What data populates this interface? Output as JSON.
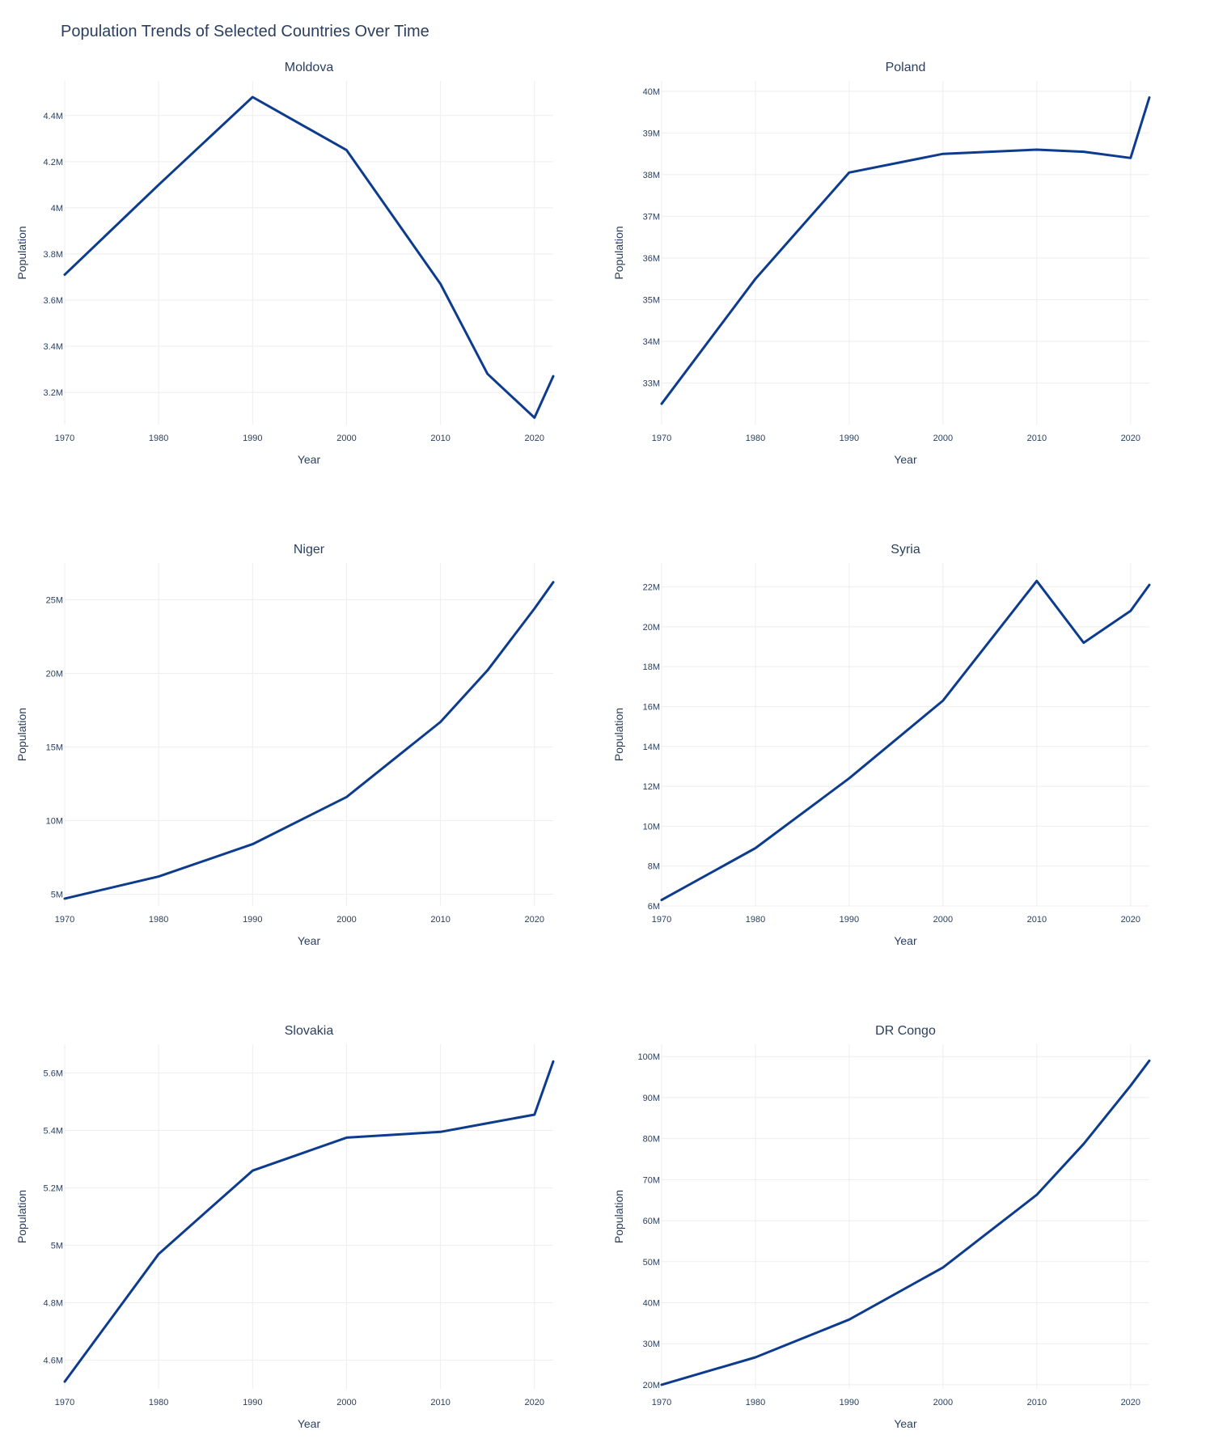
{
  "title": "Population Trends of Selected Countries Over Time",
  "colors": {
    "line": "#0d3c8e",
    "grid": "#eeeeee",
    "text": "#2a3f5f"
  },
  "chart_data": [
    {
      "type": "line",
      "title": "Moldova",
      "xlabel": "Year",
      "ylabel": "Population",
      "x": [
        1970,
        1980,
        1990,
        2000,
        2010,
        2015,
        2020,
        2022
      ],
      "y": [
        3710000,
        4100000,
        4480000,
        4250000,
        3670000,
        3280000,
        3090000,
        3270000
      ],
      "xlim": [
        1970,
        2022
      ],
      "ylim": [
        3060000,
        4550000
      ],
      "xticks": [
        1970,
        1980,
        1990,
        2000,
        2010,
        2020
      ],
      "yticks": [
        3200000,
        3400000,
        3600000,
        3800000,
        4000000,
        4200000,
        4400000
      ],
      "ytick_labels": [
        "3.2M",
        "3.4M",
        "3.6M",
        "3.8M",
        "4M",
        "4.2M",
        "4.4M"
      ],
      "grid": true
    },
    {
      "type": "line",
      "title": "Poland",
      "xlabel": "Year",
      "ylabel": "Population",
      "x": [
        1970,
        1980,
        1990,
        2000,
        2010,
        2015,
        2020,
        2022
      ],
      "y": [
        32500000,
        35500000,
        38050000,
        38500000,
        38600000,
        38550000,
        38400000,
        39850000
      ],
      "xlim": [
        1970,
        2022
      ],
      "ylim": [
        32000000,
        40250000
      ],
      "xticks": [
        1970,
        1980,
        1990,
        2000,
        2010,
        2020
      ],
      "yticks": [
        33000000,
        34000000,
        35000000,
        36000000,
        37000000,
        38000000,
        39000000,
        40000000
      ],
      "ytick_labels": [
        "33M",
        "34M",
        "35M",
        "36M",
        "37M",
        "38M",
        "39M",
        "40M"
      ],
      "grid": true
    },
    {
      "type": "line",
      "title": "Niger",
      "xlabel": "Year",
      "ylabel": "Population",
      "x": [
        1970,
        1980,
        1990,
        2000,
        2010,
        2015,
        2020,
        2022
      ],
      "y": [
        4700000,
        6200000,
        8400000,
        11600000,
        16700000,
        20200000,
        24400000,
        26200000
      ],
      "xlim": [
        1970,
        2022
      ],
      "ylim": [
        4200000,
        27500000
      ],
      "xticks": [
        1970,
        1980,
        1990,
        2000,
        2010,
        2020
      ],
      "yticks": [
        5000000,
        10000000,
        15000000,
        20000000,
        25000000
      ],
      "ytick_labels": [
        "5M",
        "10M",
        "15M",
        "20M",
        "25M"
      ],
      "grid": true
    },
    {
      "type": "line",
      "title": "Syria",
      "xlabel": "Year",
      "ylabel": "Population",
      "x": [
        1970,
        1980,
        1990,
        2000,
        2010,
        2015,
        2020,
        2022
      ],
      "y": [
        6300000,
        8900000,
        12400000,
        16300000,
        22300000,
        19200000,
        20800000,
        22100000
      ],
      "xlim": [
        1970,
        2022
      ],
      "ylim": [
        6000000,
        23200000
      ],
      "xticks": [
        1970,
        1980,
        1990,
        2000,
        2010,
        2020
      ],
      "yticks": [
        6000000,
        8000000,
        10000000,
        12000000,
        14000000,
        16000000,
        18000000,
        20000000,
        22000000
      ],
      "ytick_labels": [
        "6M",
        "8M",
        "10M",
        "12M",
        "14M",
        "16M",
        "18M",
        "20M",
        "22M"
      ],
      "grid": true
    },
    {
      "type": "line",
      "title": "Slovakia",
      "xlabel": "Year",
      "ylabel": "Population",
      "x": [
        1970,
        1980,
        1990,
        2000,
        2010,
        2015,
        2020,
        2022
      ],
      "y": [
        4525000,
        4970000,
        5260000,
        5375000,
        5395000,
        5425000,
        5455000,
        5640000
      ],
      "xlim": [
        1970,
        2022
      ],
      "ylim": [
        4500000,
        5700000
      ],
      "xticks": [
        1970,
        1980,
        1990,
        2000,
        2010,
        2020
      ],
      "yticks": [
        4600000,
        4800000,
        5000000,
        5200000,
        5400000,
        5600000
      ],
      "ytick_labels": [
        "4.6M",
        "4.8M",
        "5M",
        "5.2M",
        "5.4M",
        "5.6M"
      ],
      "grid": true
    },
    {
      "type": "line",
      "title": "DR Congo",
      "xlabel": "Year",
      "ylabel": "Population",
      "x": [
        1970,
        1980,
        1990,
        2000,
        2010,
        2015,
        2020,
        2022
      ],
      "y": [
        20000000,
        26700000,
        35900000,
        48600000,
        66300000,
        78700000,
        92900000,
        99000000
      ],
      "xlim": [
        1970,
        2022
      ],
      "ylim": [
        19000000,
        103000000
      ],
      "xticks": [
        1970,
        1980,
        1990,
        2000,
        2010,
        2020
      ],
      "yticks": [
        20000000,
        30000000,
        40000000,
        50000000,
        60000000,
        70000000,
        80000000,
        90000000,
        100000000
      ],
      "ytick_labels": [
        "20M",
        "30M",
        "40M",
        "50M",
        "60M",
        "70M",
        "80M",
        "90M",
        "100M"
      ],
      "grid": true
    }
  ]
}
